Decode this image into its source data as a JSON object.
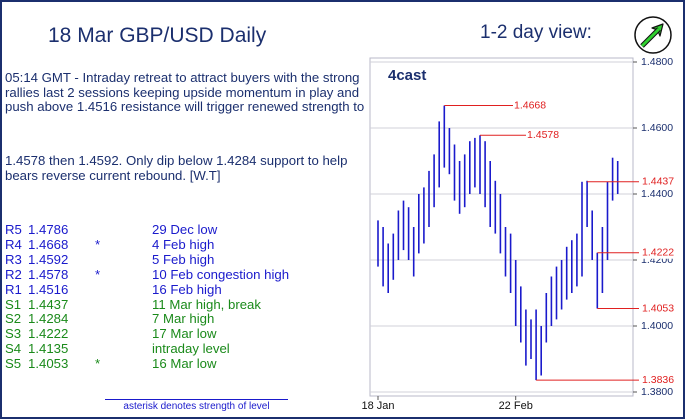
{
  "header": {
    "title": "18 Mar  GBP/USD  Daily",
    "view_label": "1-2 day view:"
  },
  "commentary": [
    "05:14 GMT - Intraday retreat to attract buyers with the strong rallies last 2 sessions keeping upside momentum in play and push above 1.4516 resistance will trigger renewed strength to",
    "1.4578 then 1.4592. Only dip below 1.4284 support to help bears reverse current rebound. [W.T]"
  ],
  "levels": {
    "rows": [
      [
        "R5",
        "1.4786",
        null,
        "29 Dec low"
      ],
      [
        "R4",
        "1.4668",
        "*",
        "4 Feb high"
      ],
      [
        "R3",
        "1.4592",
        null,
        "5 Feb high"
      ],
      [
        "R2",
        "1.4578",
        "*",
        "10 Feb congestion high"
      ],
      [
        "R1",
        "1.4516",
        null,
        "16 Feb high"
      ],
      [
        "S1",
        "1.4437",
        null,
        "11 Mar high, break"
      ],
      [
        "S2",
        "1.4284",
        null,
        "7 Mar high"
      ],
      [
        "S3",
        "1.4222",
        null,
        "17 Mar low"
      ],
      [
        "S4",
        "1.4135",
        null,
        "intraday level"
      ],
      [
        "S5",
        "1.4053",
        "*",
        "16 Mar low"
      ]
    ],
    "footnote": "asterisk denotes strength of level"
  },
  "chart_data": {
    "type": "hl_bar",
    "brand": "4cast",
    "color": "#1a1acc",
    "level_color": "#e02020",
    "categories": [
      "18 Jan",
      null,
      null,
      null,
      null,
      null,
      null,
      null,
      null,
      null,
      null,
      null,
      null,
      null,
      null,
      null,
      null,
      null,
      null,
      null,
      null,
      null,
      null,
      null,
      null,
      null,
      null,
      "22 Feb",
      null,
      null,
      null,
      null,
      null,
      null,
      null,
      null,
      null,
      null,
      null,
      null,
      null,
      null,
      null,
      null,
      null,
      null,
      null,
      null
    ],
    "high": [
      1.432,
      1.43,
      1.425,
      1.428,
      1.435,
      1.438,
      1.436,
      1.43,
      1.44,
      1.442,
      1.447,
      1.452,
      1.462,
      1.4668,
      1.46,
      1.455,
      1.45,
      1.452,
      1.456,
      1.457,
      1.4578,
      1.456,
      1.45,
      1.444,
      1.44,
      1.43,
      1.428,
      1.42,
      1.412,
      1.405,
      1.402,
      1.405,
      1.4,
      1.41,
      1.415,
      1.418,
      1.42,
      1.424,
      1.426,
      1.428,
      1.4437,
      1.444,
      1.435,
      1.4222,
      1.43,
      1.4437,
      1.451,
      1.45
    ],
    "low": [
      1.418,
      1.412,
      1.41,
      1.414,
      1.42,
      1.423,
      1.42,
      1.415,
      1.422,
      1.425,
      1.43,
      1.436,
      1.442,
      1.448,
      1.446,
      1.438,
      1.434,
      1.436,
      1.44,
      1.442,
      1.44,
      1.436,
      1.43,
      1.428,
      1.422,
      1.415,
      1.41,
      1.4,
      1.395,
      1.388,
      1.39,
      1.3836,
      1.385,
      1.395,
      1.4,
      1.402,
      1.405,
      1.408,
      1.41,
      1.412,
      1.415,
      1.43,
      1.42,
      1.4053,
      1.41,
      1.42,
      1.438,
      1.44
    ],
    "levels": [
      1.4668,
      1.4578,
      1.4437,
      1.4222,
      1.4053,
      1.3836
    ],
    "ylim": [
      1.38,
      1.48
    ],
    "yticks": [
      {
        "value": 1.38,
        "label": "1.3800"
      },
      {
        "value": 1.4,
        "label": "1.4000"
      },
      {
        "value": 1.42,
        "label": "1.4200"
      },
      {
        "value": 1.44,
        "label": "1.4400"
      },
      {
        "value": 1.46,
        "label": "1.4600"
      },
      {
        "value": 1.48,
        "label": "1.4800"
      }
    ],
    "grid": true
  }
}
